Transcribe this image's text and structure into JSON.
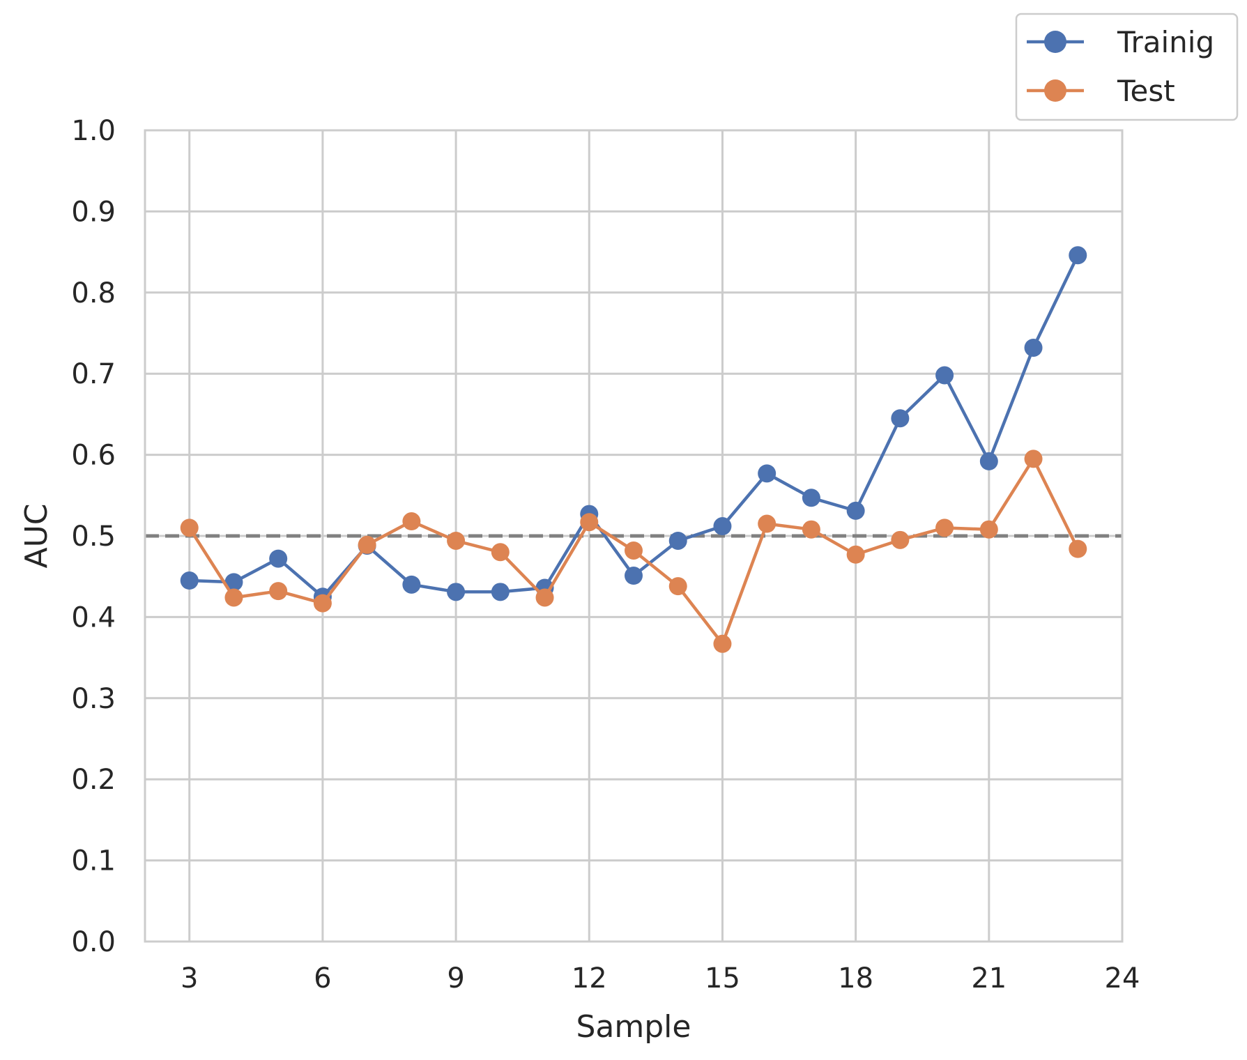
{
  "chart_data": {
    "type": "line",
    "title": "",
    "xlabel": "Sample",
    "ylabel": "AUC",
    "xlim": [
      2,
      24
    ],
    "ylim": [
      0.0,
      1.0
    ],
    "xticks": [
      3,
      6,
      9,
      12,
      15,
      18,
      21,
      24
    ],
    "yticks": [
      0.0,
      0.1,
      0.2,
      0.3,
      0.4,
      0.5,
      0.6,
      0.7,
      0.8,
      0.9,
      1.0
    ],
    "xtick_labels": [
      "3",
      "6",
      "9",
      "12",
      "15",
      "18",
      "21",
      "24"
    ],
    "ytick_labels": [
      "0.0",
      "0.1",
      "0.2",
      "0.3",
      "0.4",
      "0.5",
      "0.6",
      "0.7",
      "0.8",
      "0.9",
      "1.0"
    ],
    "grid": true,
    "legend_position": "top-right",
    "reference_line": {
      "y": 0.5,
      "style": "dashed",
      "color": "#808080"
    },
    "x": [
      3,
      4,
      5,
      6,
      7,
      8,
      9,
      10,
      11,
      12,
      13,
      14,
      15,
      16,
      17,
      18,
      19,
      20,
      21,
      22,
      23
    ],
    "series": [
      {
        "name": "Trainig",
        "color": "#4c72b0",
        "values": [
          0.445,
          0.443,
          0.472,
          0.425,
          0.488,
          0.44,
          0.431,
          0.431,
          0.436,
          0.527,
          0.451,
          0.494,
          0.512,
          0.577,
          0.547,
          0.531,
          0.645,
          0.698,
          0.592,
          0.732,
          0.846
        ]
      },
      {
        "name": "Test",
        "color": "#dd8452",
        "values": [
          0.51,
          0.424,
          0.432,
          0.417,
          0.489,
          0.518,
          0.494,
          0.48,
          0.424,
          0.517,
          0.482,
          0.438,
          0.367,
          0.515,
          0.508,
          0.477,
          0.495,
          0.51,
          0.508,
          0.595,
          0.484
        ]
      }
    ]
  }
}
